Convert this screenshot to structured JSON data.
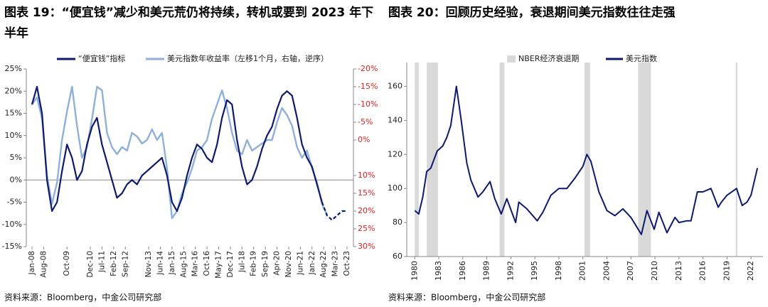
{
  "chart_data": [
    {
      "type": "line",
      "title": "图表 19：“便宜钱”减少和美元荒仍将持续，转机或要到 2023 年下半年",
      "source": "资料来源：Bloomberg，中金公司研究部",
      "x": [
        "Jan-08",
        "Apr-08",
        "Jul-08",
        "Oct-08",
        "Jan-09",
        "Apr-09",
        "Jul-09",
        "Oct-09",
        "Jan-10",
        "Apr-10",
        "Jul-10",
        "Oct-10",
        "Jan-11",
        "Apr-11",
        "Jul-11",
        "Oct-11",
        "Jan-12",
        "Apr-12",
        "Jul-12",
        "Oct-12",
        "Jan-13",
        "Apr-13",
        "Jul-13",
        "Oct-13",
        "Jan-14",
        "Apr-14",
        "Jul-14",
        "Oct-14",
        "Jan-15",
        "Apr-15",
        "Jul-15",
        "Oct-15",
        "Jan-16",
        "Apr-16",
        "Jul-16",
        "Oct-16",
        "Jan-17",
        "Apr-17",
        "Jul-17",
        "Oct-17",
        "Jan-18",
        "Apr-18",
        "Jul-18",
        "Oct-18",
        "Jan-19",
        "Apr-19",
        "Jul-19",
        "Oct-19",
        "Jan-20",
        "Apr-20",
        "Jul-20",
        "Oct-20",
        "Jan-21",
        "Apr-21",
        "Jul-21",
        "Oct-21",
        "Jan-22",
        "Apr-22",
        "Jul-22",
        "Oct-22",
        "Jan-23",
        "Apr-23",
        "Jul-23",
        "Oct-23"
      ],
      "xticks": [
        "Jan-08",
        "Aug-08",
        "Oct-09",
        "Dec-10",
        "Jul-11",
        "Feb-12",
        "Sep-12",
        "Nov-13",
        "Jun-14",
        "Jan-15",
        "Aug-15",
        "Mar-16",
        "Oct-16",
        "May-17",
        "Dec-17",
        "Jul-18",
        "Feb-19",
        "Sep-19",
        "Apr-20",
        "Nov-20",
        "Jun-21",
        "Jan-22",
        "Aug-22",
        "Mar-23",
        "Oct-23"
      ],
      "ylim": [
        -15,
        25
      ],
      "yticks": [
        {
          "value": 25,
          "label": "25%"
        },
        {
          "value": 20,
          "label": "20%"
        },
        {
          "value": 15,
          "label": "15%"
        },
        {
          "value": 10,
          "label": "10%"
        },
        {
          "value": 5,
          "label": "5%"
        },
        {
          "value": 0,
          "label": "0%"
        },
        {
          "value": -5,
          "label": "-5%"
        },
        {
          "value": -10,
          "label": "-10%"
        },
        {
          "value": -15,
          "label": "-15%"
        }
      ],
      "y2lim": [
        -20,
        30
      ],
      "y2_inverted": true,
      "y2tick_color": "#e02020",
      "y2ticks": [
        {
          "value": -20,
          "label": "-20%"
        },
        {
          "value": -15,
          "label": "-15%"
        },
        {
          "value": -10,
          "label": "-10%"
        },
        {
          "value": -5,
          "label": "-5%"
        },
        {
          "value": 0,
          "label": "0%"
        },
        {
          "value": 10,
          "label": "10%"
        },
        {
          "value": 15,
          "label": "15%"
        },
        {
          "value": 20,
          "label": "20%"
        },
        {
          "value": 25,
          "label": "25%"
        },
        {
          "value": 30,
          "label": "30%"
        }
      ],
      "series": [
        {
          "name": "“便宜钱”指标",
          "color": "#0d1a6e",
          "values": [
            17,
            21,
            15,
            0,
            -7,
            -5,
            2,
            8,
            5,
            0,
            2,
            8,
            12,
            14,
            8,
            4,
            0,
            -4,
            -3,
            -1,
            0,
            -1,
            1,
            2,
            3,
            4,
            5,
            1,
            -5,
            -7,
            -4,
            1,
            5,
            8,
            7,
            5,
            4,
            8,
            14,
            18,
            17,
            9,
            3,
            -1,
            0,
            3,
            7,
            10,
            12,
            16,
            19,
            20,
            19,
            14,
            8,
            5,
            3,
            -1,
            -5,
            null,
            null,
            null,
            null,
            null
          ],
          "dashed_values": [
            null,
            null,
            null,
            null,
            null,
            null,
            null,
            null,
            null,
            null,
            null,
            null,
            null,
            null,
            null,
            null,
            null,
            null,
            null,
            null,
            null,
            null,
            null,
            null,
            null,
            null,
            null,
            null,
            null,
            null,
            null,
            null,
            null,
            null,
            null,
            null,
            null,
            null,
            null,
            null,
            null,
            null,
            null,
            null,
            null,
            null,
            null,
            null,
            null,
            null,
            null,
            null,
            null,
            null,
            null,
            null,
            null,
            null,
            -5,
            -8,
            -9,
            -8,
            -7,
            -7
          ]
        },
        {
          "name": "美元指数年收益率（左移1个月，右轴，逆序）",
          "color": "#8fb0d8",
          "axis": "y2",
          "values": [
            -10,
            -12,
            -6,
            10,
            18,
            12,
            0,
            -8,
            -15,
            -4,
            5,
            2,
            -6,
            -15,
            -14,
            -2,
            2,
            4,
            2,
            3,
            -2,
            -1,
            1,
            0,
            -3,
            0,
            -2,
            8,
            22,
            20,
            15,
            12,
            8,
            3,
            2,
            0,
            -6,
            -10,
            -14,
            -9,
            -2,
            3,
            4,
            0,
            3,
            2,
            1,
            0,
            0,
            -5,
            -9,
            -7,
            -4,
            2,
            5,
            3,
            8,
            12,
            18,
            21,
            null,
            null,
            null,
            null
          ]
        }
      ]
    },
    {
      "type": "line",
      "title": "图表 20：回顾历史经验，衰退期间美元指数往往走强",
      "source": "资料来源：Bloomberg，中金公司研究部",
      "recessions": {
        "name": "NBER经济衰退期",
        "color": "#d9d9d9",
        "spans": [
          [
            1980,
            1980.5
          ],
          [
            1981.5,
            1982.9
          ],
          [
            1990.6,
            1991.2
          ],
          [
            2001.2,
            2001.9
          ],
          [
            2007.9,
            2009.5
          ],
          [
            2020.1,
            2020.3
          ]
        ]
      },
      "x": [
        1980,
        1980.5,
        1981,
        1981.5,
        1982,
        1982.8,
        1983.5,
        1984,
        1984.5,
        1985.2,
        1985.8,
        1986.5,
        1987,
        1987.9,
        1988.5,
        1989.4,
        1990,
        1990.8,
        1991.5,
        1992.6,
        1993,
        1994,
        1995.3,
        1996,
        1997,
        1998,
        1999,
        2000,
        2001,
        2001.5,
        2002,
        2003,
        2004,
        2005,
        2006,
        2007,
        2008.3,
        2009,
        2009.9,
        2010.5,
        2011.5,
        2012.5,
        2013,
        2014,
        2014.5,
        2015.3,
        2016,
        2017,
        2017.9,
        2018.3,
        2019,
        2020.2,
        2020.9,
        2021.5,
        2022,
        2022.8
      ],
      "xlim": [
        1979,
        2023.5
      ],
      "xticks": [
        1980,
        1983,
        1986,
        1989,
        1992,
        1995,
        1998,
        2001,
        2004,
        2007,
        2010,
        2013,
        2016,
        2019,
        2022
      ],
      "ylim": [
        60,
        174
      ],
      "yticks": [
        60,
        80,
        100,
        120,
        140,
        160
      ],
      "series": [
        {
          "name": "美元指数",
          "color": "#0d1a6e",
          "values": [
            87,
            85,
            95,
            110,
            112,
            122,
            125,
            130,
            137,
            160,
            140,
            115,
            105,
            95,
            98,
            104,
            94,
            85,
            94,
            80,
            92,
            88,
            81,
            86,
            96,
            100,
            100,
            106,
            113,
            120,
            116,
            98,
            87,
            84,
            88,
            83,
            73,
            87,
            76,
            86,
            74,
            83,
            80,
            81,
            81,
            98,
            98,
            100,
            89,
            92,
            96,
            100,
            90,
            92,
            96,
            112
          ]
        }
      ]
    }
  ]
}
